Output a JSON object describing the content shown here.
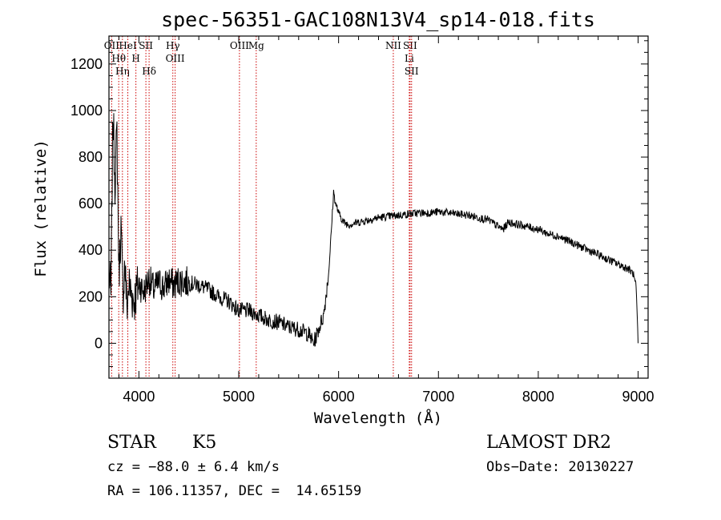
{
  "chart_data": {
    "type": "line",
    "title": "spec-56351-GAC108N13V4_sp14-018.fits",
    "xlabel": "Wavelength (Å)",
    "ylabel": "Flux (relative)",
    "xlim": [
      3700,
      9100
    ],
    "ylim": [
      -150,
      1320
    ],
    "xticks": [
      4000,
      5000,
      6000,
      7000,
      8000,
      9000
    ],
    "yticks": [
      0,
      200,
      400,
      600,
      800,
      1000,
      1200
    ],
    "grid": false,
    "line_color": "#000000",
    "marker_color": "#cc0000",
    "series": [
      {
        "x": [
          3700,
          3720,
          3740,
          3760,
          3780,
          3800,
          3820,
          3840,
          3860,
          3880,
          3900,
          3950,
          4000,
          4050,
          4100,
          4150,
          4200,
          4250,
          4300,
          4350,
          4400,
          4500,
          4600,
          4700,
          4800,
          4900,
          5000,
          5100,
          5200,
          5300,
          5400,
          5500,
          5600,
          5700,
          5750,
          5800,
          5850,
          5900,
          5930,
          5950,
          5970,
          6000,
          6050,
          6100,
          6200,
          6300,
          6400,
          6500,
          6600,
          6700,
          6800,
          6900,
          7000,
          7100,
          7200,
          7300,
          7400,
          7500,
          7600,
          7650,
          7700,
          7800,
          7900,
          8000,
          8100,
          8200,
          8300,
          8400,
          8500,
          8600,
          8700,
          8800,
          8900,
          8950,
          8980,
          9000
        ],
        "y": [
          300,
          200,
          1000,
          700,
          900,
          300,
          500,
          200,
          350,
          150,
          250,
          180,
          260,
          220,
          280,
          230,
          260,
          240,
          270,
          250,
          270,
          260,
          250,
          230,
          200,
          180,
          140,
          140,
          120,
          100,
          90,
          70,
          60,
          40,
          0,
          60,
          120,
          300,
          500,
          650,
          600,
          560,
          520,
          510,
          520,
          530,
          540,
          545,
          550,
          555,
          560,
          560,
          565,
          560,
          555,
          550,
          540,
          530,
          500,
          490,
          520,
          510,
          500,
          490,
          470,
          460,
          440,
          420,
          400,
          380,
          360,
          340,
          320,
          300,
          240,
          0
        ]
      }
    ],
    "lines": [
      {
        "x": 3727,
        "labels": [
          "OII"
        ]
      },
      {
        "x": 3798,
        "labels": [
          "Hθ"
        ]
      },
      {
        "x": 3835,
        "labels": [
          "Hη"
        ]
      },
      {
        "x": 3889,
        "labels": [
          "HeI"
        ]
      },
      {
        "x": 3970,
        "labels": [
          "H"
        ]
      },
      {
        "x": 4070,
        "labels": [
          "SII"
        ]
      },
      {
        "x": 4102,
        "labels": [
          "Hδ"
        ]
      },
      {
        "x": 4340,
        "labels": [
          "Hγ"
        ]
      },
      {
        "x": 4363,
        "labels": [
          "OIII"
        ]
      },
      {
        "x": 5007,
        "labels": [
          "OIII"
        ]
      },
      {
        "x": 5175,
        "labels": [
          "Mg"
        ]
      },
      {
        "x": 6548,
        "labels": [
          "NII"
        ]
      },
      {
        "x": 6708,
        "labels": [
          "Li"
        ]
      },
      {
        "x": 6716,
        "labels": [
          "SII"
        ]
      },
      {
        "x": 6731,
        "labels": [
          "SII"
        ]
      }
    ]
  },
  "info": {
    "class": "STAR",
    "subclass": "K5",
    "survey": "LAMOST DR2",
    "cz": "cz = −88.0 ± 6.4 km/s",
    "obs_date": "Obs−Date: 20130227",
    "coords": "RA = 106.11357, DEC =  14.65159"
  }
}
